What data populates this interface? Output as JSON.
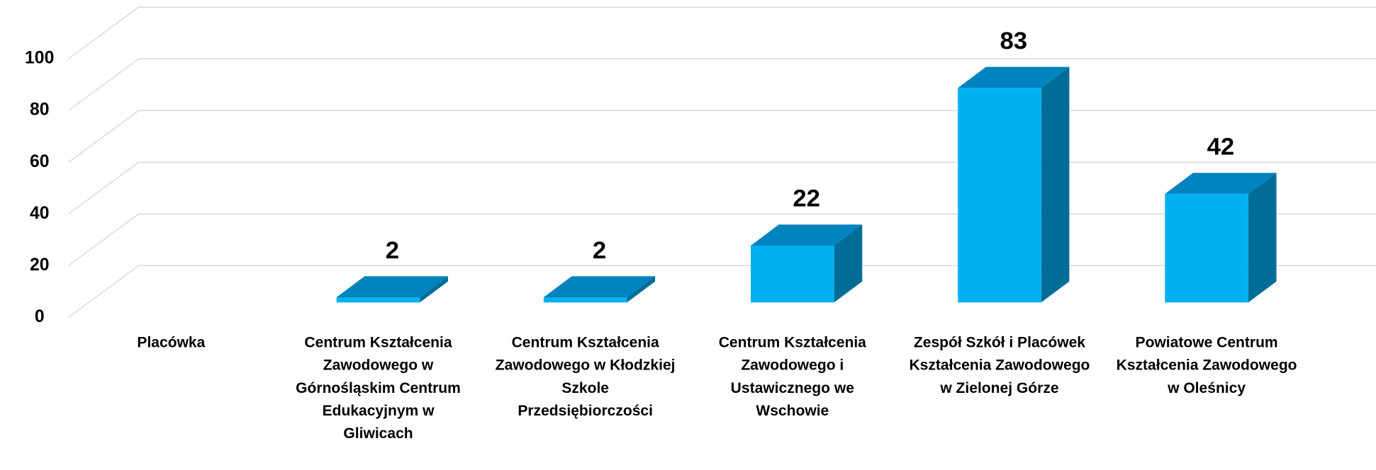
{
  "chart_data": {
    "type": "bar3d",
    "categories": [
      "Placówka",
      "Centrum Kształcenia Zawodowego w Górnośląskim Centrum Edukacyjnym w Gliwicach",
      "Centrum Kształcenia Zawodowego w Kłodzkiej Szkole Przedsiębiorczości",
      "Centrum Kształcenia Zawodowego i Ustawicznego we Wschowie",
      "Zespół Szkół i Placówek Kształcenia Zawodowego w Zielonej Górze",
      "Powiatowe Centrum Kształcenia Zawodowego w Oleśnicy"
    ],
    "values": [
      null,
      2,
      2,
      22,
      83,
      42
    ],
    "color": "#00b0f0",
    "ylim": [
      0,
      100
    ],
    "yticks": [
      0,
      20,
      40,
      60,
      80,
      100
    ],
    "grid": true
  }
}
